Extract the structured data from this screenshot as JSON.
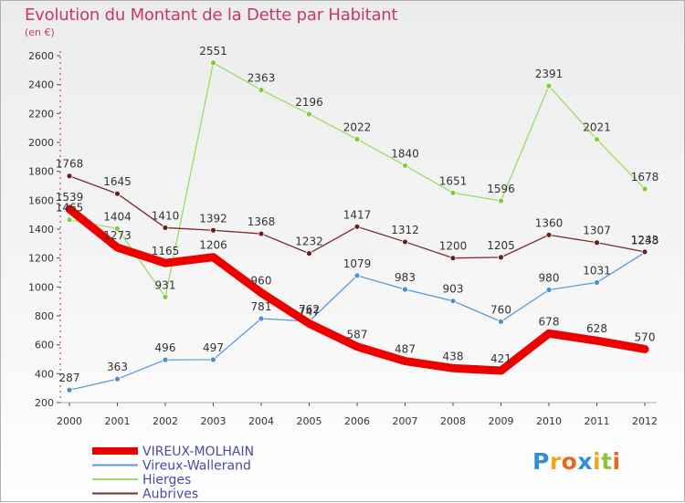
{
  "title": "Evolution du Montant de la Dette par Habitant",
  "subtitle": "(en €)",
  "logo": {
    "text": "Proxiti",
    "letters": [
      {
        "ch": "P",
        "color": "#2e8fd6"
      },
      {
        "ch": "r",
        "color": "#f2a71b"
      },
      {
        "ch": "o",
        "color": "#e9671c"
      },
      {
        "ch": "x",
        "color": "#2e8fd6"
      },
      {
        "ch": "i",
        "color": "#f2a71b"
      },
      {
        "ch": "t",
        "color": "#8cc63f"
      },
      {
        "ch": "i",
        "color": "#e9671c"
      }
    ]
  },
  "chart_data": {
    "type": "line",
    "x": [
      "2000",
      "2001",
      "2002",
      "2003",
      "2004",
      "2005",
      "2006",
      "2007",
      "2008",
      "2009",
      "2010",
      "2011",
      "2012"
    ],
    "ylim": [
      200,
      2600
    ],
    "yticks": [
      200,
      400,
      600,
      800,
      1000,
      1200,
      1400,
      1600,
      1800,
      2000,
      2200,
      2400,
      2600
    ],
    "grid": false,
    "legend_position": "bottom-left",
    "series": [
      {
        "name": "VIREUX-MOLHAIN",
        "color": "#ee0000",
        "width": 9,
        "markers": false,
        "values": [
          1539,
          1273,
          1165,
          1206,
          960,
          747,
          587,
          487,
          438,
          421,
          678,
          628,
          570
        ]
      },
      {
        "name": "Vireux-Wallerand",
        "color": "#5b9bd5",
        "width": 1.3,
        "markers": true,
        "marker_color": "#4a8fd0",
        "values": [
          287,
          363,
          496,
          497,
          781,
          762,
          1079,
          983,
          903,
          760,
          980,
          1031,
          1238
        ]
      },
      {
        "name": "Hierges",
        "color": "#99dd66",
        "width": 1.3,
        "markers": true,
        "marker_color": "#7fcc3a",
        "values": [
          1465,
          1404,
          931,
          2551,
          2363,
          2196,
          2022,
          1840,
          1651,
          1596,
          2391,
          2021,
          1678
        ]
      },
      {
        "name": "Aubrives",
        "color": "#7a2a2a",
        "width": 1.3,
        "markers": true,
        "marker_color": "#6b1e1e",
        "values": [
          1768,
          1645,
          1410,
          1392,
          1368,
          1232,
          1417,
          1312,
          1200,
          1205,
          1360,
          1307,
          1243
        ]
      }
    ]
  }
}
